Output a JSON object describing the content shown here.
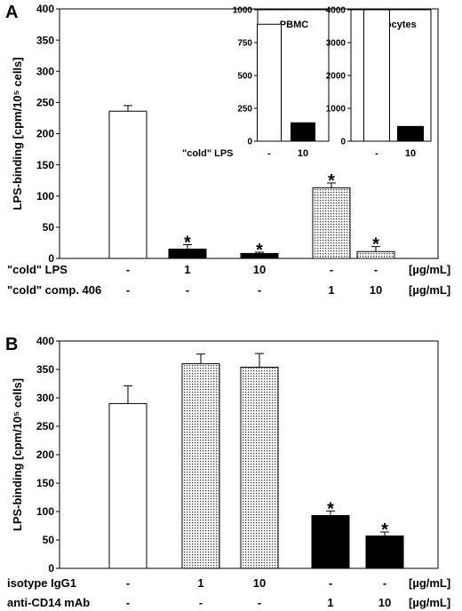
{
  "chart_data": [
    {
      "panel_label": "A",
      "type": "bar",
      "ylabel": "LPS-binding [cpm/10⁵ cells]",
      "ylim": [
        0,
        400
      ],
      "yticks": [
        "0",
        "50",
        "100",
        "150",
        "200",
        "250",
        "300",
        "350",
        "400"
      ],
      "values": [
        236,
        15,
        8,
        113,
        11
      ],
      "errors": [
        9,
        7,
        2,
        8,
        8
      ],
      "fills": [
        "white",
        "black",
        "black",
        "dotted",
        "dotted"
      ],
      "significant": [
        false,
        true,
        true,
        true,
        true
      ],
      "marker": "*",
      "condition_rows": [
        {
          "label": "\"cold\" LPS",
          "values": [
            "-",
            "1",
            "10",
            "-",
            "-"
          ],
          "unit": "[µg/mL]"
        },
        {
          "label": "\"cold\" comp. 406",
          "values": [
            "-",
            "-",
            "-",
            "1",
            "10"
          ],
          "unit": "[µg/mL]"
        }
      ]
    },
    {
      "panel_label": "",
      "type": "bar",
      "title": "PBMC",
      "ylim": [
        0,
        1000
      ],
      "yticks": [
        "0",
        "250",
        "500",
        "750",
        "1000"
      ],
      "values": [
        890,
        140
      ],
      "fills": [
        "white",
        "black"
      ],
      "condition_rows": [
        {
          "label": "\"cold\" LPS",
          "values": [
            "-",
            "10"
          ]
        }
      ]
    },
    {
      "panel_label": "",
      "type": "bar",
      "title": "Monocytes",
      "ylim": [
        0,
        4000
      ],
      "yticks": [
        "0",
        "1000",
        "2000",
        "3000",
        "4000"
      ],
      "values": [
        4060,
        450
      ],
      "fills": [
        "white",
        "black"
      ],
      "condition_rows": [
        {
          "label": "",
          "values": [
            "-",
            "10"
          ]
        }
      ]
    },
    {
      "panel_label": "B",
      "type": "bar",
      "ylabel": "LPS-binding [cpm/10⁵ cells]",
      "ylim": [
        0,
        400
      ],
      "yticks": [
        "0",
        "50",
        "100",
        "150",
        "200",
        "250",
        "300",
        "350",
        "400"
      ],
      "values": [
        290,
        360,
        354,
        93,
        57
      ],
      "errors": [
        31,
        17,
        24,
        8,
        7
      ],
      "fills": [
        "white",
        "dotted",
        "dotted",
        "black",
        "black"
      ],
      "significant": [
        false,
        false,
        false,
        true,
        true
      ],
      "marker": "*",
      "condition_rows": [
        {
          "label": "isotype IgG1",
          "values": [
            "-",
            "1",
            "10",
            "-",
            "-"
          ],
          "unit": "[µg/mL]"
        },
        {
          "label": "anti-CD14 mAb",
          "values": [
            "-",
            "-",
            "-",
            "1",
            "10"
          ],
          "unit": "[µg/mL]"
        }
      ]
    }
  ]
}
